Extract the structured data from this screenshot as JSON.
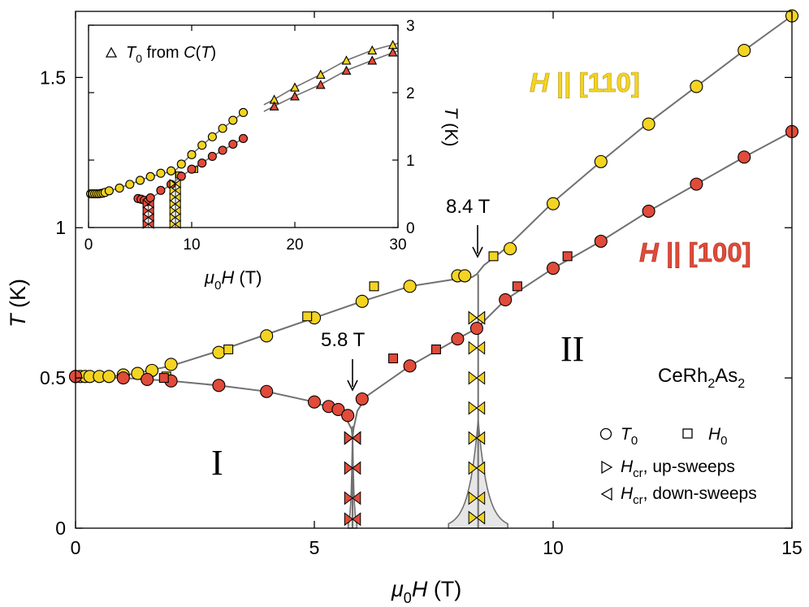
{
  "chart_data": {
    "type": "scatter",
    "title": "",
    "xlabel_sym": "μ",
    "xlabel_sub": "0",
    "xlabel_rest": "H (T)",
    "ylabel_sym": "T",
    "ylabel_rest": " (K)",
    "xlim": [
      0,
      15
    ],
    "ylim": [
      0,
      1.72
    ],
    "xticks": [
      "0",
      "5",
      "10",
      "15"
    ],
    "xtick_values": [
      0,
      5,
      10,
      15
    ],
    "yticks": [
      "0",
      "0.5",
      "1",
      "1.5"
    ],
    "ytick_values": [
      0,
      0.5,
      1,
      1.5
    ],
    "colors": {
      "h110": "#f4d421",
      "h100": "#e04b3a",
      "line": "#707070",
      "shade": "#e6e6e6",
      "axis": "#000000"
    },
    "series": [
      {
        "name": "H || [110] T0",
        "marker": "circle",
        "color": "h110",
        "x": [
          0,
          0.1,
          0.2,
          0.3,
          0.5,
          0.7,
          1.0,
          1.3,
          1.6,
          2.0,
          3.0,
          4.0,
          5.0,
          6.0,
          7.0,
          8.0,
          8.15,
          9.1,
          10.0,
          11.0,
          12.0,
          13.0,
          14.0,
          15.0
        ],
        "y": [
          0.505,
          0.505,
          0.505,
          0.505,
          0.505,
          0.505,
          0.51,
          0.515,
          0.525,
          0.545,
          0.585,
          0.64,
          0.7,
          0.755,
          0.805,
          0.84,
          0.84,
          0.93,
          1.08,
          1.22,
          1.345,
          1.47,
          1.59,
          1.705
        ]
      },
      {
        "name": "H || [110] H0",
        "marker": "square",
        "color": "h110",
        "x": [
          1.9,
          3.2,
          4.85,
          6.25,
          8.75
        ],
        "y": [
          0.505,
          0.595,
          0.705,
          0.805,
          0.905
        ]
      },
      {
        "name": "H || [100] T0",
        "marker": "circle",
        "color": "h100",
        "x": [
          0,
          1.0,
          1.5,
          2.0,
          3.0,
          4.0,
          5.0,
          5.3,
          5.5,
          5.7,
          6.0,
          7.0,
          8.0,
          8.4,
          9.0,
          10.0,
          11.0,
          12.0,
          13.0,
          14.0,
          15.0
        ],
        "y": [
          0.505,
          0.5,
          0.495,
          0.49,
          0.475,
          0.455,
          0.42,
          0.405,
          0.395,
          0.375,
          0.43,
          0.54,
          0.63,
          0.665,
          0.76,
          0.865,
          0.955,
          1.055,
          1.145,
          1.235,
          1.32
        ]
      },
      {
        "name": "H || [100] H0",
        "marker": "square",
        "color": "h100",
        "x": [
          1.85,
          6.65,
          7.55,
          9.25,
          10.3
        ],
        "y": [
          0.5,
          0.565,
          0.595,
          0.805,
          0.905
        ]
      },
      {
        "name": "H || [100] Hcr",
        "marker": "bowtie",
        "color": "h100",
        "x": [
          5.8,
          5.8,
          5.8,
          5.8,
          5.8
        ],
        "y": [
          0.03,
          0.1,
          0.2,
          0.3,
          0.3
        ]
      },
      {
        "name": "H || [110] Hcr",
        "marker": "bowtie",
        "color": "h110",
        "x": [
          8.4,
          8.4,
          8.4,
          8.4,
          8.4,
          8.4,
          8.4,
          8.4,
          8.4
        ],
        "y": [
          0.035,
          0.1,
          0.2,
          0.3,
          0.4,
          0.5,
          0.6,
          0.7,
          0.7
        ]
      }
    ],
    "lines": [
      {
        "x": [
          0,
          1,
          2,
          3,
          4,
          5,
          6,
          7,
          8,
          8.3,
          8.4,
          8.55,
          9,
          10,
          11,
          12,
          13,
          14,
          15
        ],
        "y": [
          0.505,
          0.507,
          0.54,
          0.59,
          0.645,
          0.7,
          0.755,
          0.805,
          0.83,
          0.835,
          0.845,
          0.875,
          0.93,
          1.085,
          1.22,
          1.35,
          1.47,
          1.59,
          1.705
        ]
      },
      {
        "x": [
          0,
          1,
          2,
          3,
          4,
          5,
          5.4,
          5.65,
          5.78,
          5.8,
          5.82,
          5.9,
          6.1,
          7,
          8,
          8.4,
          9,
          10,
          11,
          12,
          13,
          14,
          15
        ],
        "y": [
          0.505,
          0.5,
          0.49,
          0.475,
          0.455,
          0.42,
          0.395,
          0.37,
          0.33,
          0.3,
          0.33,
          0.39,
          0.44,
          0.54,
          0.63,
          0.665,
          0.76,
          0.865,
          0.955,
          1.055,
          1.145,
          1.235,
          1.32
        ]
      }
    ],
    "annotations": [
      {
        "text": "8.4 T",
        "x": 8.4,
        "y": 0.96
      },
      {
        "text": "5.8 T",
        "x": 5.8,
        "y": 0.58
      }
    ],
    "region_labels": [
      "I",
      "II"
    ],
    "h110_label": "H || [110]",
    "h100_label": "H || [100]",
    "compound": {
      "a": "CeRh",
      "b": "2",
      "c": "As",
      "d": "2"
    },
    "legend": {
      "t0_sym": "T",
      "t0_sub": "0",
      "h0_sym": "H",
      "h0_sub": "0",
      "hcr_sym": "H",
      "hcr_sub": "cr",
      "up_text": ", up-sweeps",
      "down_text": ", down-sweeps"
    },
    "inset": {
      "xlim": [
        0,
        30
      ],
      "ylim": [
        0,
        3
      ],
      "xticks": [
        "0",
        "10",
        "20",
        "30"
      ],
      "xtick_values": [
        0,
        10,
        20,
        30
      ],
      "yticks": [
        "0",
        "1",
        "2",
        "3"
      ],
      "ytick_values": [
        0,
        1,
        2,
        3
      ],
      "legend_text_a": "T",
      "legend_text_sub": "0",
      "legend_text_b": " from ",
      "legend_text_c": "C",
      "legend_text_d": "(",
      "legend_text_e": "T",
      "legend_text_f": ")",
      "series": [
        {
          "name": "inset [110] T0",
          "marker": "circle",
          "color": "h110",
          "x": [
            0.2,
            0.4,
            0.6,
            0.8,
            1.0,
            1.2,
            1.4,
            1.6,
            2.0,
            3.0,
            4.0,
            5.0,
            6.0,
            7.0,
            8.0,
            9.0,
            10.0,
            11.0,
            12.0,
            13.0,
            14.0,
            15.0
          ],
          "y": [
            0.5,
            0.5,
            0.5,
            0.5,
            0.5,
            0.505,
            0.51,
            0.52,
            0.545,
            0.585,
            0.64,
            0.7,
            0.755,
            0.805,
            0.84,
            0.94,
            1.08,
            1.22,
            1.345,
            1.47,
            1.59,
            1.705
          ]
        },
        {
          "name": "inset [110] H0",
          "marker": "square",
          "color": "h110",
          "x": [
            8.75,
            10.3
          ],
          "y": [
            0.78,
            0.86
          ]
        },
        {
          "name": "inset [100] T0",
          "marker": "circle",
          "color": "h100",
          "x": [
            4.8,
            5.1,
            5.4,
            5.7,
            6.0,
            7.0,
            8.0,
            9.0,
            10.0,
            11.0,
            12.0,
            13.0,
            14.0,
            15.0
          ],
          "y": [
            0.43,
            0.42,
            0.405,
            0.385,
            0.44,
            0.55,
            0.64,
            0.76,
            0.865,
            0.955,
            1.055,
            1.145,
            1.235,
            1.32
          ]
        },
        {
          "name": "inset [100] Hcr",
          "marker": "bowtie",
          "color": "h100",
          "x": [
            5.8,
            5.8,
            5.8,
            5.8
          ],
          "y": [
            0.05,
            0.15,
            0.25,
            0.35
          ]
        },
        {
          "name": "inset [110] Hcr",
          "marker": "bowtie",
          "color": "h110",
          "x": [
            8.4,
            8.4,
            8.4,
            8.4,
            8.4,
            8.4,
            8.4
          ],
          "y": [
            0.05,
            0.15,
            0.25,
            0.35,
            0.45,
            0.55,
            0.65
          ]
        },
        {
          "name": "inset [110] T0 from C(T)",
          "marker": "triangle",
          "color": "h110",
          "x": [
            18,
            20,
            22.5,
            25,
            27.5,
            29.5
          ],
          "y": [
            1.9,
            2.08,
            2.27,
            2.48,
            2.63,
            2.71
          ]
        },
        {
          "name": "inset [100] T0 from C(T)",
          "marker": "triangle",
          "color": "h100",
          "x": [
            18,
            20,
            22.5,
            25,
            27.5,
            29.5
          ],
          "y": [
            1.8,
            1.95,
            2.12,
            2.33,
            2.48,
            2.6
          ]
        }
      ]
    }
  }
}
